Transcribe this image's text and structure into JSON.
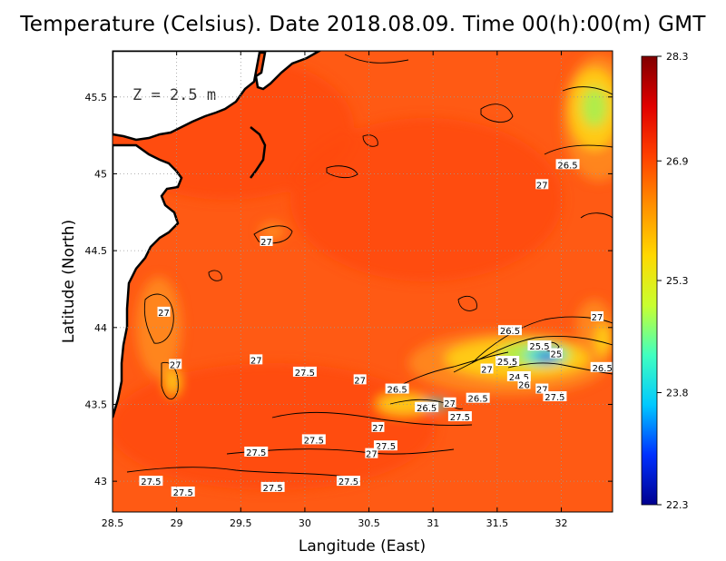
{
  "chart_data": {
    "type": "heatmap",
    "title": "Temperature (Celsius). Date 2018.08.09. Time 00(h):00(m)  GMT",
    "annotation": "Z = 2.5 m",
    "xlabel": "Langitude (East)",
    "ylabel": "Latitude (North)",
    "xlim": [
      28.5,
      32.4
    ],
    "ylim": [
      42.8,
      45.8
    ],
    "xticks": [
      "28.5",
      "29",
      "29.5",
      "30",
      "30.5",
      "31",
      "31.5",
      "32"
    ],
    "yticks": [
      "43",
      "43.5",
      "44",
      "44.5",
      "45",
      "45.5"
    ],
    "grid": true,
    "colorbar": {
      "min": 22.3,
      "max": 28.3,
      "ticks": [
        "28.3",
        "26.9",
        "25.3",
        "23.8",
        "22.3"
      ],
      "colors": [
        "#00008f",
        "#0030ff",
        "#00c8ff",
        "#40ffc0",
        "#c8ff30",
        "#ffd800",
        "#ff9000",
        "#ff4000",
        "#e00000",
        "#800000"
      ]
    },
    "field_colors": {
      "base": "#ff5a14",
      "warm": "#ff4a10",
      "cool": "#ff8a1e",
      "yellow": "#ffd21a",
      "green": "#a8f050",
      "cyan": "#30e0e8",
      "blue": "#1040e0",
      "land": "#ffffff"
    },
    "contour_labels": [
      {
        "lon": 32.05,
        "lat": 45.06,
        "text": "26.5"
      },
      {
        "lon": 31.85,
        "lat": 44.93,
        "text": "27"
      },
      {
        "lon": 29.7,
        "lat": 44.56,
        "text": "27"
      },
      {
        "lon": 28.9,
        "lat": 44.1,
        "text": "27"
      },
      {
        "lon": 28.99,
        "lat": 43.76,
        "text": "27"
      },
      {
        "lon": 29.62,
        "lat": 43.79,
        "text": "27"
      },
      {
        "lon": 30.0,
        "lat": 43.71,
        "text": "27.5"
      },
      {
        "lon": 30.43,
        "lat": 43.66,
        "text": "27"
      },
      {
        "lon": 30.72,
        "lat": 43.6,
        "text": "26.5"
      },
      {
        "lon": 30.95,
        "lat": 43.48,
        "text": "26.5"
      },
      {
        "lon": 31.13,
        "lat": 43.51,
        "text": "27"
      },
      {
        "lon": 31.21,
        "lat": 43.42,
        "text": "27.5"
      },
      {
        "lon": 31.35,
        "lat": 43.54,
        "text": "26.5"
      },
      {
        "lon": 31.42,
        "lat": 43.73,
        "text": "27"
      },
      {
        "lon": 31.6,
        "lat": 43.98,
        "text": "26.5"
      },
      {
        "lon": 31.58,
        "lat": 43.78,
        "text": "25.5"
      },
      {
        "lon": 31.83,
        "lat": 43.88,
        "text": "25.5"
      },
      {
        "lon": 31.67,
        "lat": 43.68,
        "text": "24.5"
      },
      {
        "lon": 31.71,
        "lat": 43.63,
        "text": "26"
      },
      {
        "lon": 31.96,
        "lat": 43.83,
        "text": "25"
      },
      {
        "lon": 31.85,
        "lat": 43.6,
        "text": "27"
      },
      {
        "lon": 31.95,
        "lat": 43.55,
        "text": "27.5"
      },
      {
        "lon": 32.28,
        "lat": 44.07,
        "text": "27"
      },
      {
        "lon": 32.32,
        "lat": 43.74,
        "text": "26.5"
      },
      {
        "lon": 30.57,
        "lat": 43.35,
        "text": "27"
      },
      {
        "lon": 30.63,
        "lat": 43.23,
        "text": "27.5"
      },
      {
        "lon": 30.52,
        "lat": 43.18,
        "text": "27"
      },
      {
        "lon": 30.07,
        "lat": 43.27,
        "text": "27.5"
      },
      {
        "lon": 29.62,
        "lat": 43.19,
        "text": "27.5"
      },
      {
        "lon": 30.34,
        "lat": 43.0,
        "text": "27.5"
      },
      {
        "lon": 29.75,
        "lat": 42.96,
        "text": "27.5"
      },
      {
        "lon": 28.8,
        "lat": 43.0,
        "text": "27.5"
      },
      {
        "lon": 29.05,
        "lat": 42.93,
        "text": "27.5"
      }
    ]
  }
}
